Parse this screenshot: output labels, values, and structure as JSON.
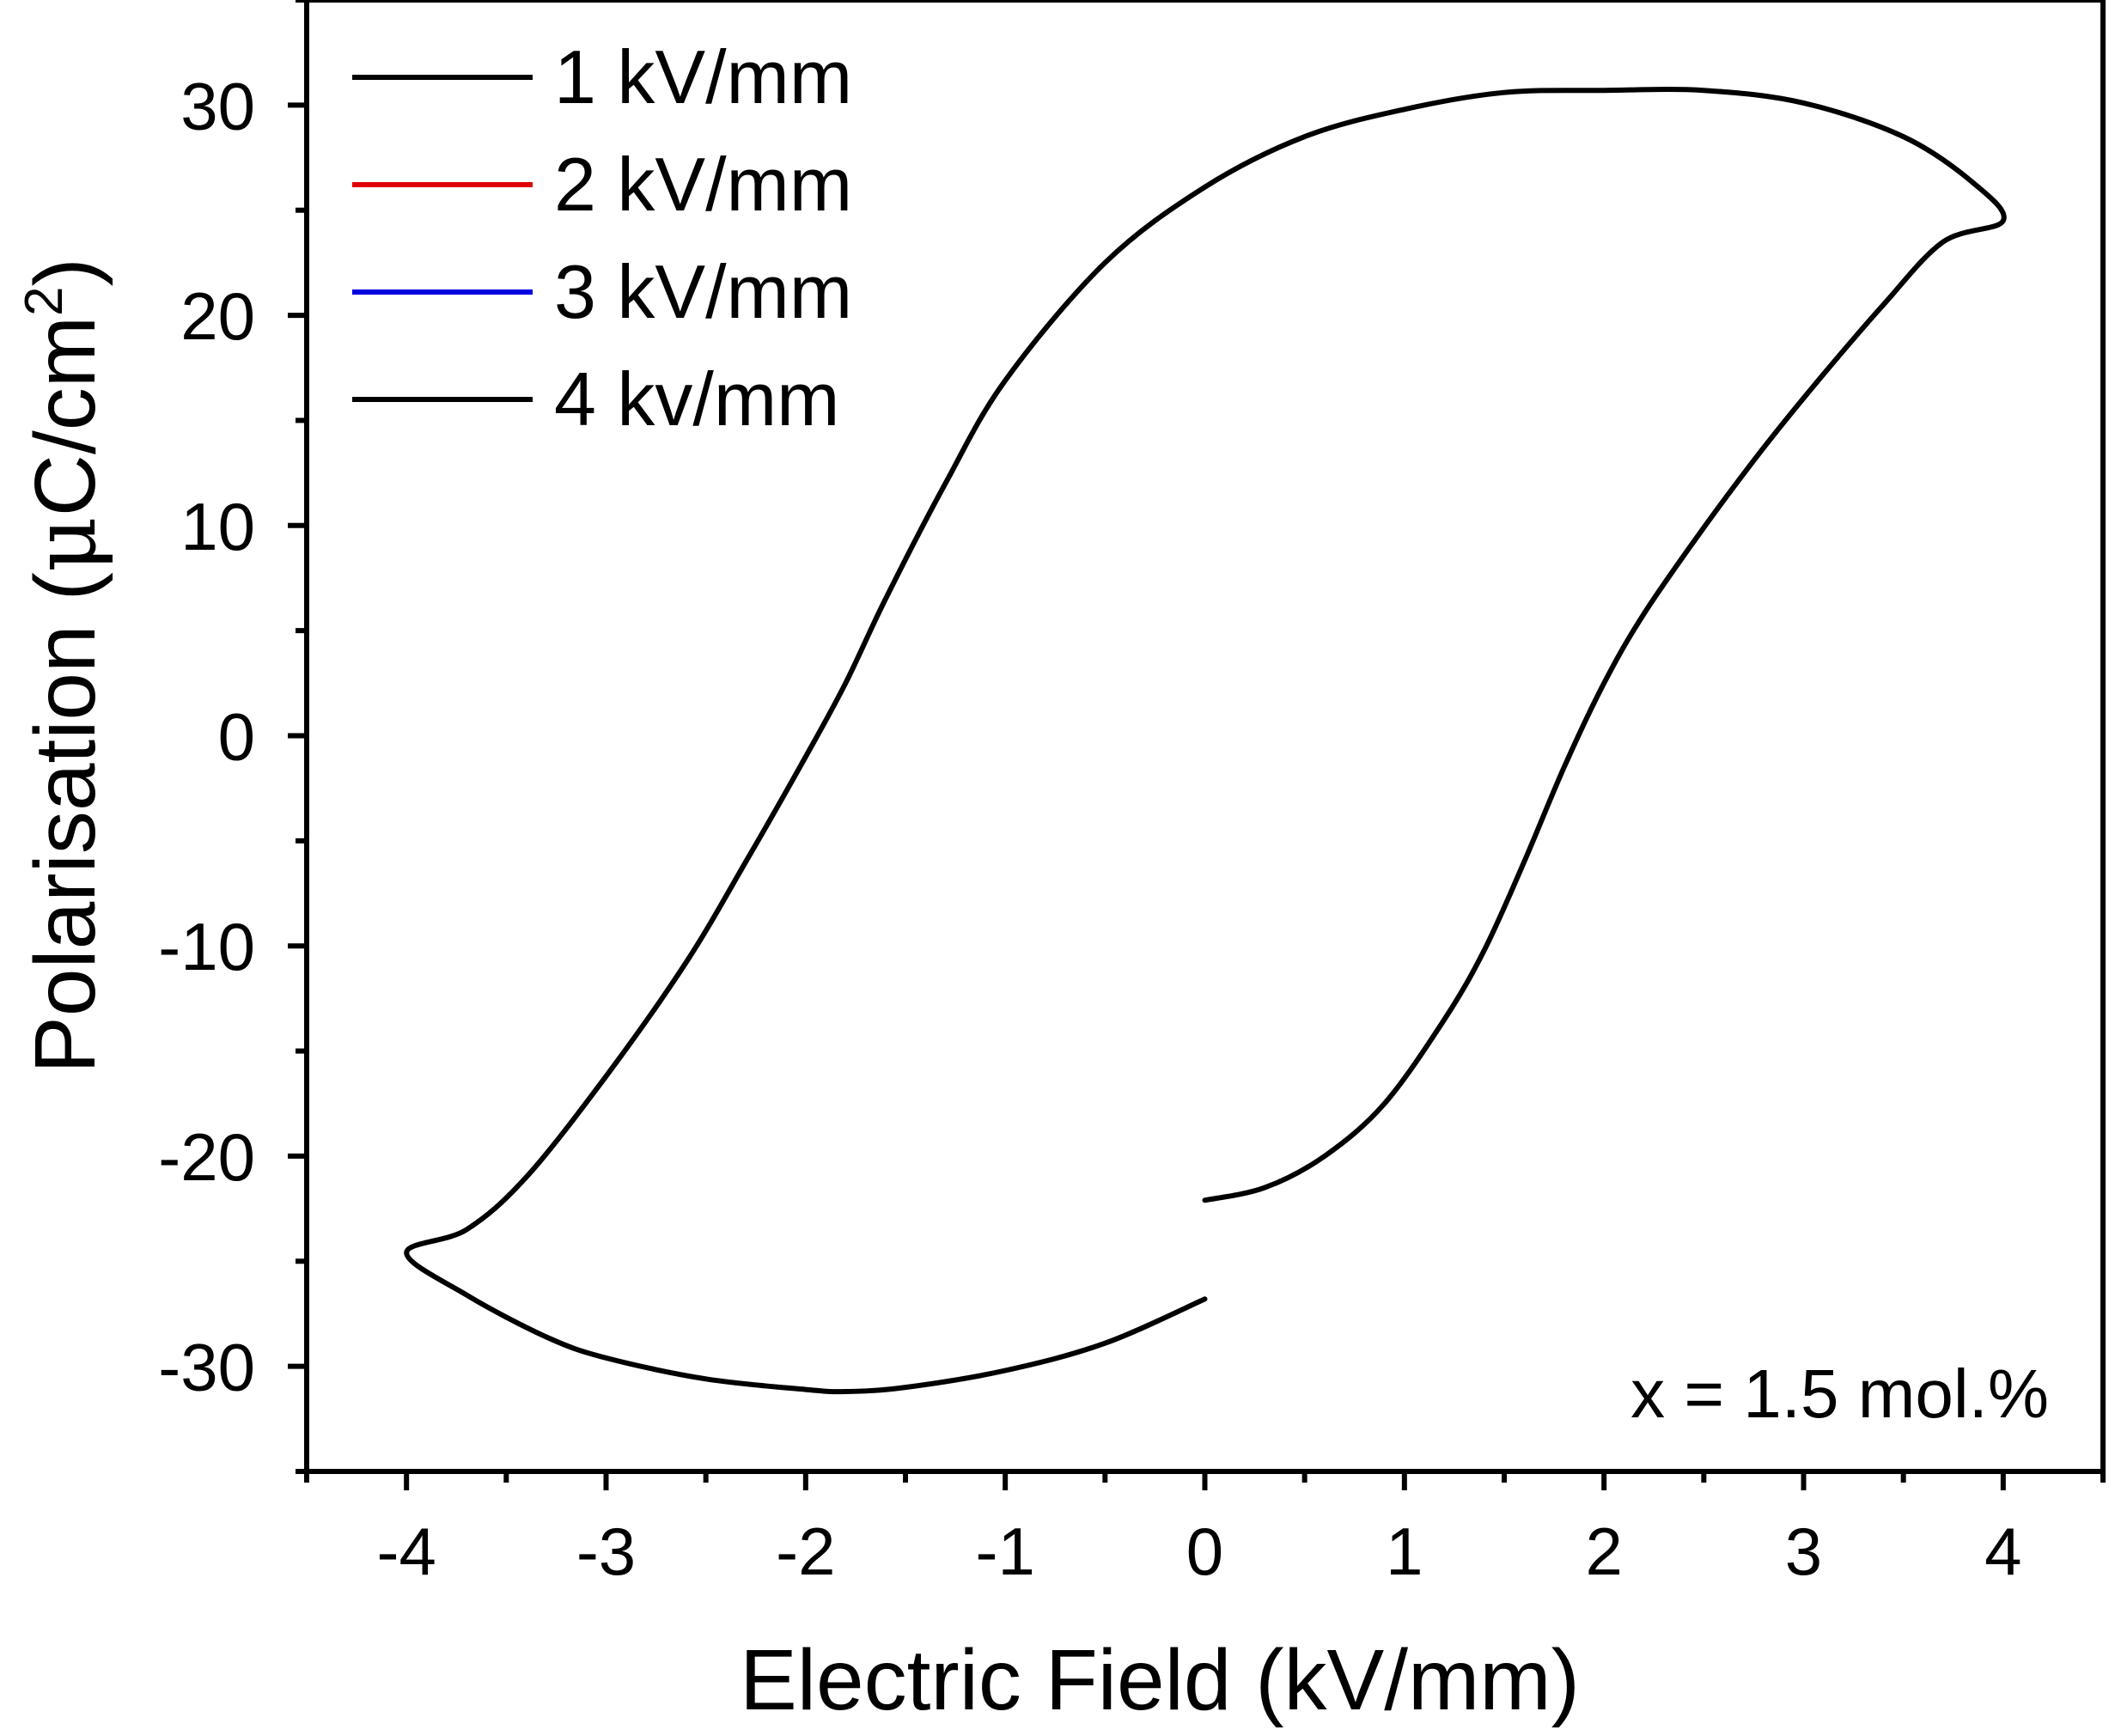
{
  "chart_data": {
    "type": "line",
    "xlabel": "Electric Field (kV/mm)",
    "ylabel_main": "Polarisation (",
    "ylabel_mu": "μ",
    "ylabel_unit": "C/cm",
    "ylabel_sup": "2",
    "ylabel_close": ")",
    "xlim": [
      -4.5,
      4.5
    ],
    "ylim": [
      -35,
      35
    ],
    "x_ticks": [
      -4,
      -3,
      -2,
      -1,
      0,
      1,
      2,
      3,
      4
    ],
    "x_tick_labels": [
      "-4",
      "-3",
      "-2",
      "-1",
      "0",
      "1",
      "2",
      "3",
      "4"
    ],
    "y_ticks": [
      -30,
      -20,
      -10,
      0,
      10,
      20,
      30
    ],
    "y_tick_labels": [
      "-30",
      "-20",
      "-10",
      "0",
      "10",
      "20",
      "30"
    ],
    "annotation": "x = 1.5 mol.%",
    "legend_position": "top-left",
    "grid": false,
    "series": [
      {
        "name": "1 kV/mm",
        "color": "#000000",
        "x": [],
        "y": []
      },
      {
        "name": "2 kV/mm",
        "color": "#e00000",
        "x": [],
        "y": []
      },
      {
        "name": "3 kV/mm",
        "color": "#0000e0",
        "x": [],
        "y": []
      },
      {
        "name": "4 kv/mm",
        "color": "#000000",
        "x": [
          0.0,
          0.3,
          0.6,
          0.9,
          1.2,
          1.4,
          1.6,
          1.8,
          2.0,
          2.2,
          2.5,
          2.8,
          3.1,
          3.4,
          3.7,
          4.0,
          3.85,
          3.5,
          3.0,
          2.5,
          2.0,
          1.5,
          1.0,
          0.5,
          0.0,
          -0.5,
          -1.0,
          -1.3,
          -1.6,
          -1.8,
          -2.0,
          -2.3,
          -2.6,
          -3.0,
          -3.4,
          -3.7,
          -4.0,
          -3.7,
          -3.3,
          -3.0,
          -2.5,
          -2.0,
          -1.8,
          -1.5,
          -1.0,
          -0.5,
          0.0
        ],
        "y": [
          -22.1,
          -21.5,
          -20.0,
          -17.5,
          -13.5,
          -10.2,
          -6.0,
          -1.5,
          2.5,
          5.8,
          9.9,
          13.7,
          17.2,
          20.5,
          23.5,
          24.5,
          26.3,
          28.5,
          30.1,
          30.7,
          30.7,
          30.6,
          29.8,
          28.5,
          26.1,
          22.5,
          16.9,
          12.0,
          6.5,
          2.5,
          -1.0,
          -6.0,
          -10.8,
          -16.2,
          -21.0,
          -23.5,
          -24.6,
          -26.6,
          -28.6,
          -29.6,
          -30.6,
          -31.1,
          -31.2,
          -31.0,
          -30.2,
          -28.9,
          -26.8
        ]
      }
    ]
  }
}
